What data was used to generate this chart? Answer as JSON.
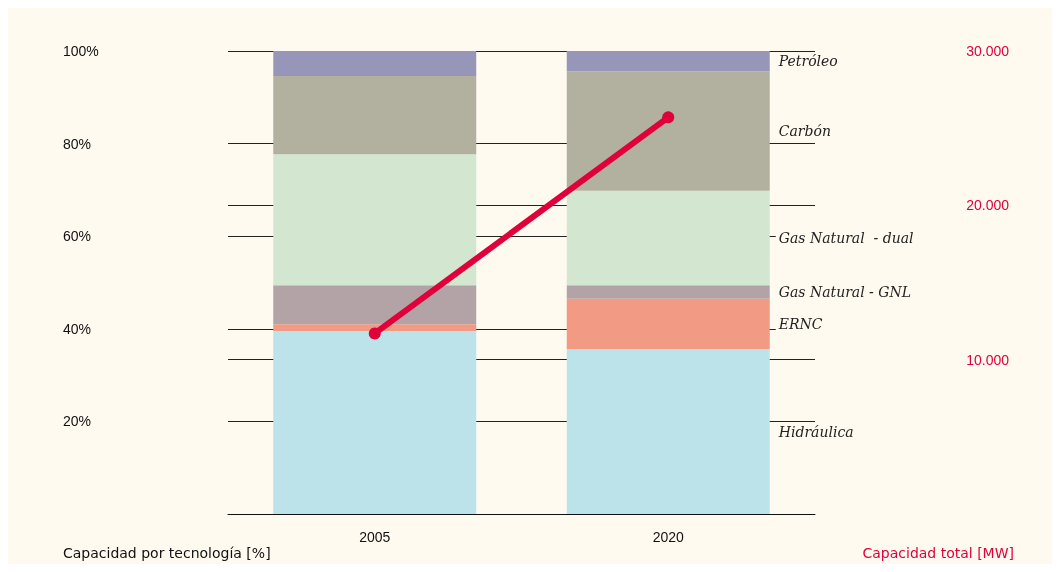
{
  "chart_data": {
    "type": "bar",
    "stacked": true,
    "categories": [
      "2005",
      "2020"
    ],
    "ylabel": "Capacidad por tecnología [%]",
    "y2label": "Capacidad total [MW]",
    "ylim": [
      0,
      1
    ],
    "yticks": [
      {
        "value": 0.2,
        "label": "20%"
      },
      {
        "value": 0.4,
        "label": "40%"
      },
      {
        "value": 0.6,
        "label": "60%"
      },
      {
        "value": 0.8,
        "label": "80%"
      },
      {
        "value": 1,
        "label": "100%"
      }
    ],
    "y2lim": [
      0,
      30000
    ],
    "y2ticks": [
      {
        "value": 10000,
        "label": "10.000"
      },
      {
        "value": 20000,
        "label": "20.000"
      },
      {
        "value": 30000,
        "label": "30.000"
      }
    ],
    "grid": true,
    "legend": false,
    "marker": "circle",
    "series": [
      {
        "name": "Hidráulica",
        "color": "#bde3ea",
        "values": [
          0.395,
          0.356
        ]
      },
      {
        "name": "ERNC",
        "color": "#f29a84",
        "values": [
          0.015,
          0.109
        ]
      },
      {
        "name": "Gas Natural - GNL",
        "color": "#b4a3a6",
        "values": [
          0.084,
          0.029
        ]
      },
      {
        "name": "Gas Natural  - dual",
        "color": "#d2e6d0",
        "values": [
          0.283,
          0.204
        ]
      },
      {
        "name": "Carbón",
        "color": "#b2b09f",
        "values": [
          0.169,
          0.258
        ]
      },
      {
        "name": "Petróleo",
        "color": "#9896b8",
        "values": [
          0.054,
          0.044
        ]
      },
      {
        "type": "line",
        "axis": "y2",
        "color": "#e0003a",
        "values": [
          11700,
          25700
        ]
      }
    ]
  }
}
